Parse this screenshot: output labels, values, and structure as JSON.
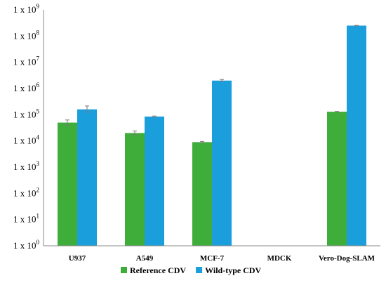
{
  "chart_data": {
    "type": "bar",
    "title": "",
    "xlabel": "",
    "ylabel": "",
    "yscale": "log",
    "ylim": [
      1,
      1000000000
    ],
    "grid": false,
    "legend_position": "bottom",
    "y_tick_prefix": "1 x 10",
    "y_tick_exponents": [
      "0",
      "1",
      "2",
      "3",
      "4",
      "5",
      "6",
      "7",
      "8",
      "9"
    ],
    "categories": [
      "U937",
      "A549",
      "MCF-7",
      "MDCK",
      "Vero-Dog-SLAM"
    ],
    "series": [
      {
        "name": "Reference CDV",
        "color": "#3fad3a",
        "values": [
          50000,
          20000,
          9000,
          null,
          130000
        ],
        "error": [
          [
            40000,
            63000
          ],
          [
            17000,
            24000
          ],
          [
            8500,
            9600
          ],
          null,
          [
            128000,
            133000
          ]
        ]
      },
      {
        "name": "Wild-type CDV",
        "color": "#1b9fdc",
        "values": [
          160000,
          85000,
          2000000,
          null,
          250000000
        ],
        "error": [
          [
            125000,
            215000
          ],
          [
            81000,
            89000
          ],
          [
            1850000,
            2200000
          ],
          null,
          [
            245000000,
            255000000
          ]
        ]
      }
    ]
  }
}
